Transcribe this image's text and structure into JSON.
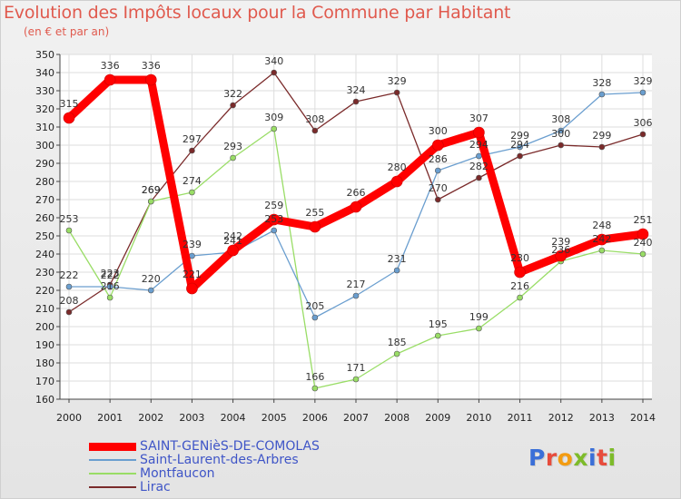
{
  "header": {
    "title": "Evolution des Impôts locaux pour la Commune par Habitant",
    "subtitle": "(en € et par an)"
  },
  "logo": {
    "text": "Proxiti",
    "letter_colors": [
      "#3a6fd8",
      "#e74c3c",
      "#f39c12",
      "#7dbb2a",
      "#3a6fd8",
      "#e74c3c",
      "#7dbb2a"
    ]
  },
  "colors": {
    "plot_bg": "#ffffff",
    "grid": "#dddddd"
  },
  "chart_data": {
    "type": "line",
    "x": [
      2000,
      2001,
      2002,
      2003,
      2004,
      2005,
      2006,
      2007,
      2008,
      2009,
      2010,
      2011,
      2012,
      2013,
      2014
    ],
    "ylim": [
      160,
      350
    ],
    "ystep": 10,
    "grid": true,
    "legend_position": "bottom-left",
    "series": [
      {
        "name": "SAINT-GENièS-DE-COMOLAS",
        "color": "#ff0000",
        "width": 9,
        "marker": 6,
        "values": [
          315,
          336,
          336,
          221,
          242,
          259,
          255,
          266,
          280,
          300,
          307,
          230,
          239,
          248,
          251
        ]
      },
      {
        "name": "Saint-Laurent-des-Arbres",
        "color": "#6a9ecf",
        "width": 1.3,
        "marker": 3,
        "values": [
          222,
          222,
          220,
          239,
          241,
          253,
          205,
          217,
          231,
          286,
          294,
          299,
          308,
          328,
          329
        ]
      },
      {
        "name": "Montfaucon",
        "color": "#99dd66",
        "width": 1.3,
        "marker": 3,
        "values": [
          253,
          216,
          269,
          274,
          293,
          309,
          166,
          171,
          185,
          195,
          199,
          216,
          236,
          242,
          240
        ]
      },
      {
        "name": "Lirac",
        "color": "#7a2a2a",
        "width": 1.3,
        "marker": 3,
        "values": [
          208,
          223,
          269,
          297,
          322,
          340,
          308,
          324,
          329,
          270,
          282,
          294,
          300,
          299,
          306
        ]
      }
    ]
  }
}
